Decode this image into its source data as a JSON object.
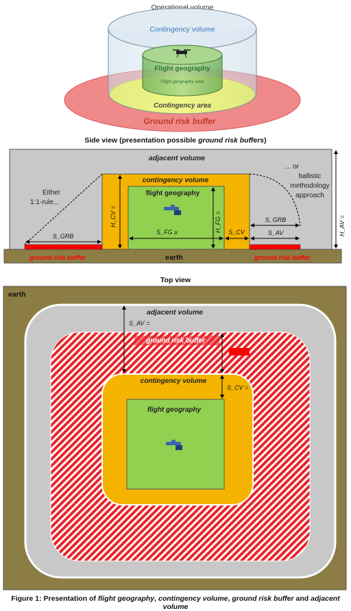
{
  "top_illustration": {
    "operational_volume": "Operational volume",
    "contingency_volume": "Contingency volume",
    "flight_geography": "Flight geography",
    "flight_geography_area": "Flight geography area",
    "contingency_area": "Contingency area",
    "ground_risk_buffer": "Ground risk buffer"
  },
  "side_view": {
    "title_prefix": "Side view (presentation possible ",
    "title_emph": "ground risk buffers",
    "title_suffix": ")",
    "adjacent_volume": "adjacent volume",
    "contingency_volume": "contingency volume",
    "flight_geography": "flight geography",
    "either": "Either",
    "one_to_one_rule": "1:1-rule...",
    "or_ballistic_1": "... or",
    "or_ballistic_2": "ballistic",
    "or_ballistic_3": "methodology",
    "or_ballistic_4": "approach",
    "earth": "earth",
    "grb_left": "ground risk buffer",
    "grb_right": "ground risk buffer",
    "s_grb_left": "S_GRB",
    "s_grb_right": "S_GRB",
    "s_fg": "S_FG ≥",
    "s_cv": "S_CV",
    "s_av": "S_AV",
    "h_cv": "H_CV =",
    "h_fg": "H_FG =",
    "h_av": "H_AV ="
  },
  "top_view": {
    "title": "Top view",
    "earth": "earth",
    "adjacent_volume": "adjacent volume",
    "ground_risk_buffer": "ground risk buffer",
    "contingency_volume": "contingency volume",
    "flight_geography": "flight geography",
    "s_av": "S_AV =",
    "s_cv": "S_CV ="
  },
  "caption": {
    "prefix": "Figure 1: Presentation of ",
    "t1": "flight geography",
    "sep1": ", ",
    "t2": "contingency volume",
    "sep2": ", ",
    "t3": "ground risk buffer",
    "sep3": " and ",
    "t4": "adjacent volume"
  },
  "colors": {
    "adjacent_grey": "#c8c8c8",
    "contingency_orange": "#f5b400",
    "flight_green": "#92d050",
    "earth_olive": "#8c7d45",
    "grb_red": "#ff0000"
  }
}
